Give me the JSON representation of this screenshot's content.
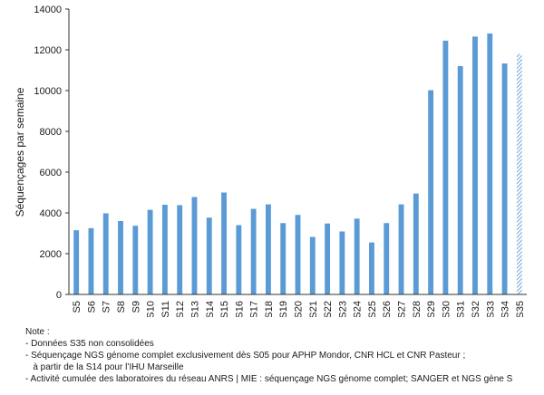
{
  "chart_data": {
    "type": "bar",
    "title": "",
    "xlabel": "",
    "ylabel": "Séquençages par semaine",
    "ylim": [
      0,
      14000
    ],
    "yticks": [
      0,
      2000,
      4000,
      6000,
      8000,
      10000,
      12000,
      14000
    ],
    "grid": false,
    "bar_color": "#5b9bd5",
    "categories": [
      "S5",
      "S6",
      "S7",
      "S8",
      "S9",
      "S10",
      "S11",
      "S12",
      "S13",
      "S14",
      "S15",
      "S16",
      "S17",
      "S18",
      "S19",
      "S20",
      "S21",
      "S22",
      "S23",
      "S24",
      "S25",
      "S26",
      "S27",
      "S28",
      "S29",
      "S30",
      "S31",
      "S32",
      "S33",
      "S34",
      "S35"
    ],
    "values": [
      3150,
      3250,
      3980,
      3600,
      3370,
      4150,
      4400,
      4380,
      4780,
      3770,
      5000,
      3400,
      4200,
      4420,
      3500,
      3900,
      2820,
      3480,
      3090,
      3720,
      2550,
      3500,
      4420,
      4950,
      10020,
      12450,
      11200,
      12650,
      12800,
      11330,
      11800
    ],
    "hatched_categories": [
      "S35"
    ]
  },
  "notes": {
    "heading": "Note :",
    "lines": [
      "-  Données S35 non consolidées",
      "-  Séquençage NGS génome complet exclusivement dès S05 pour APHP Mondor, CNR HCL et CNR Pasteur ;",
      "   à partir de la S14 pour l’IHU Marseille",
      "-  Activité cumulée des laboratoires du réseau ANRS | MIE : séquençage NGS génome complet; SANGER et NGS gène S"
    ]
  }
}
